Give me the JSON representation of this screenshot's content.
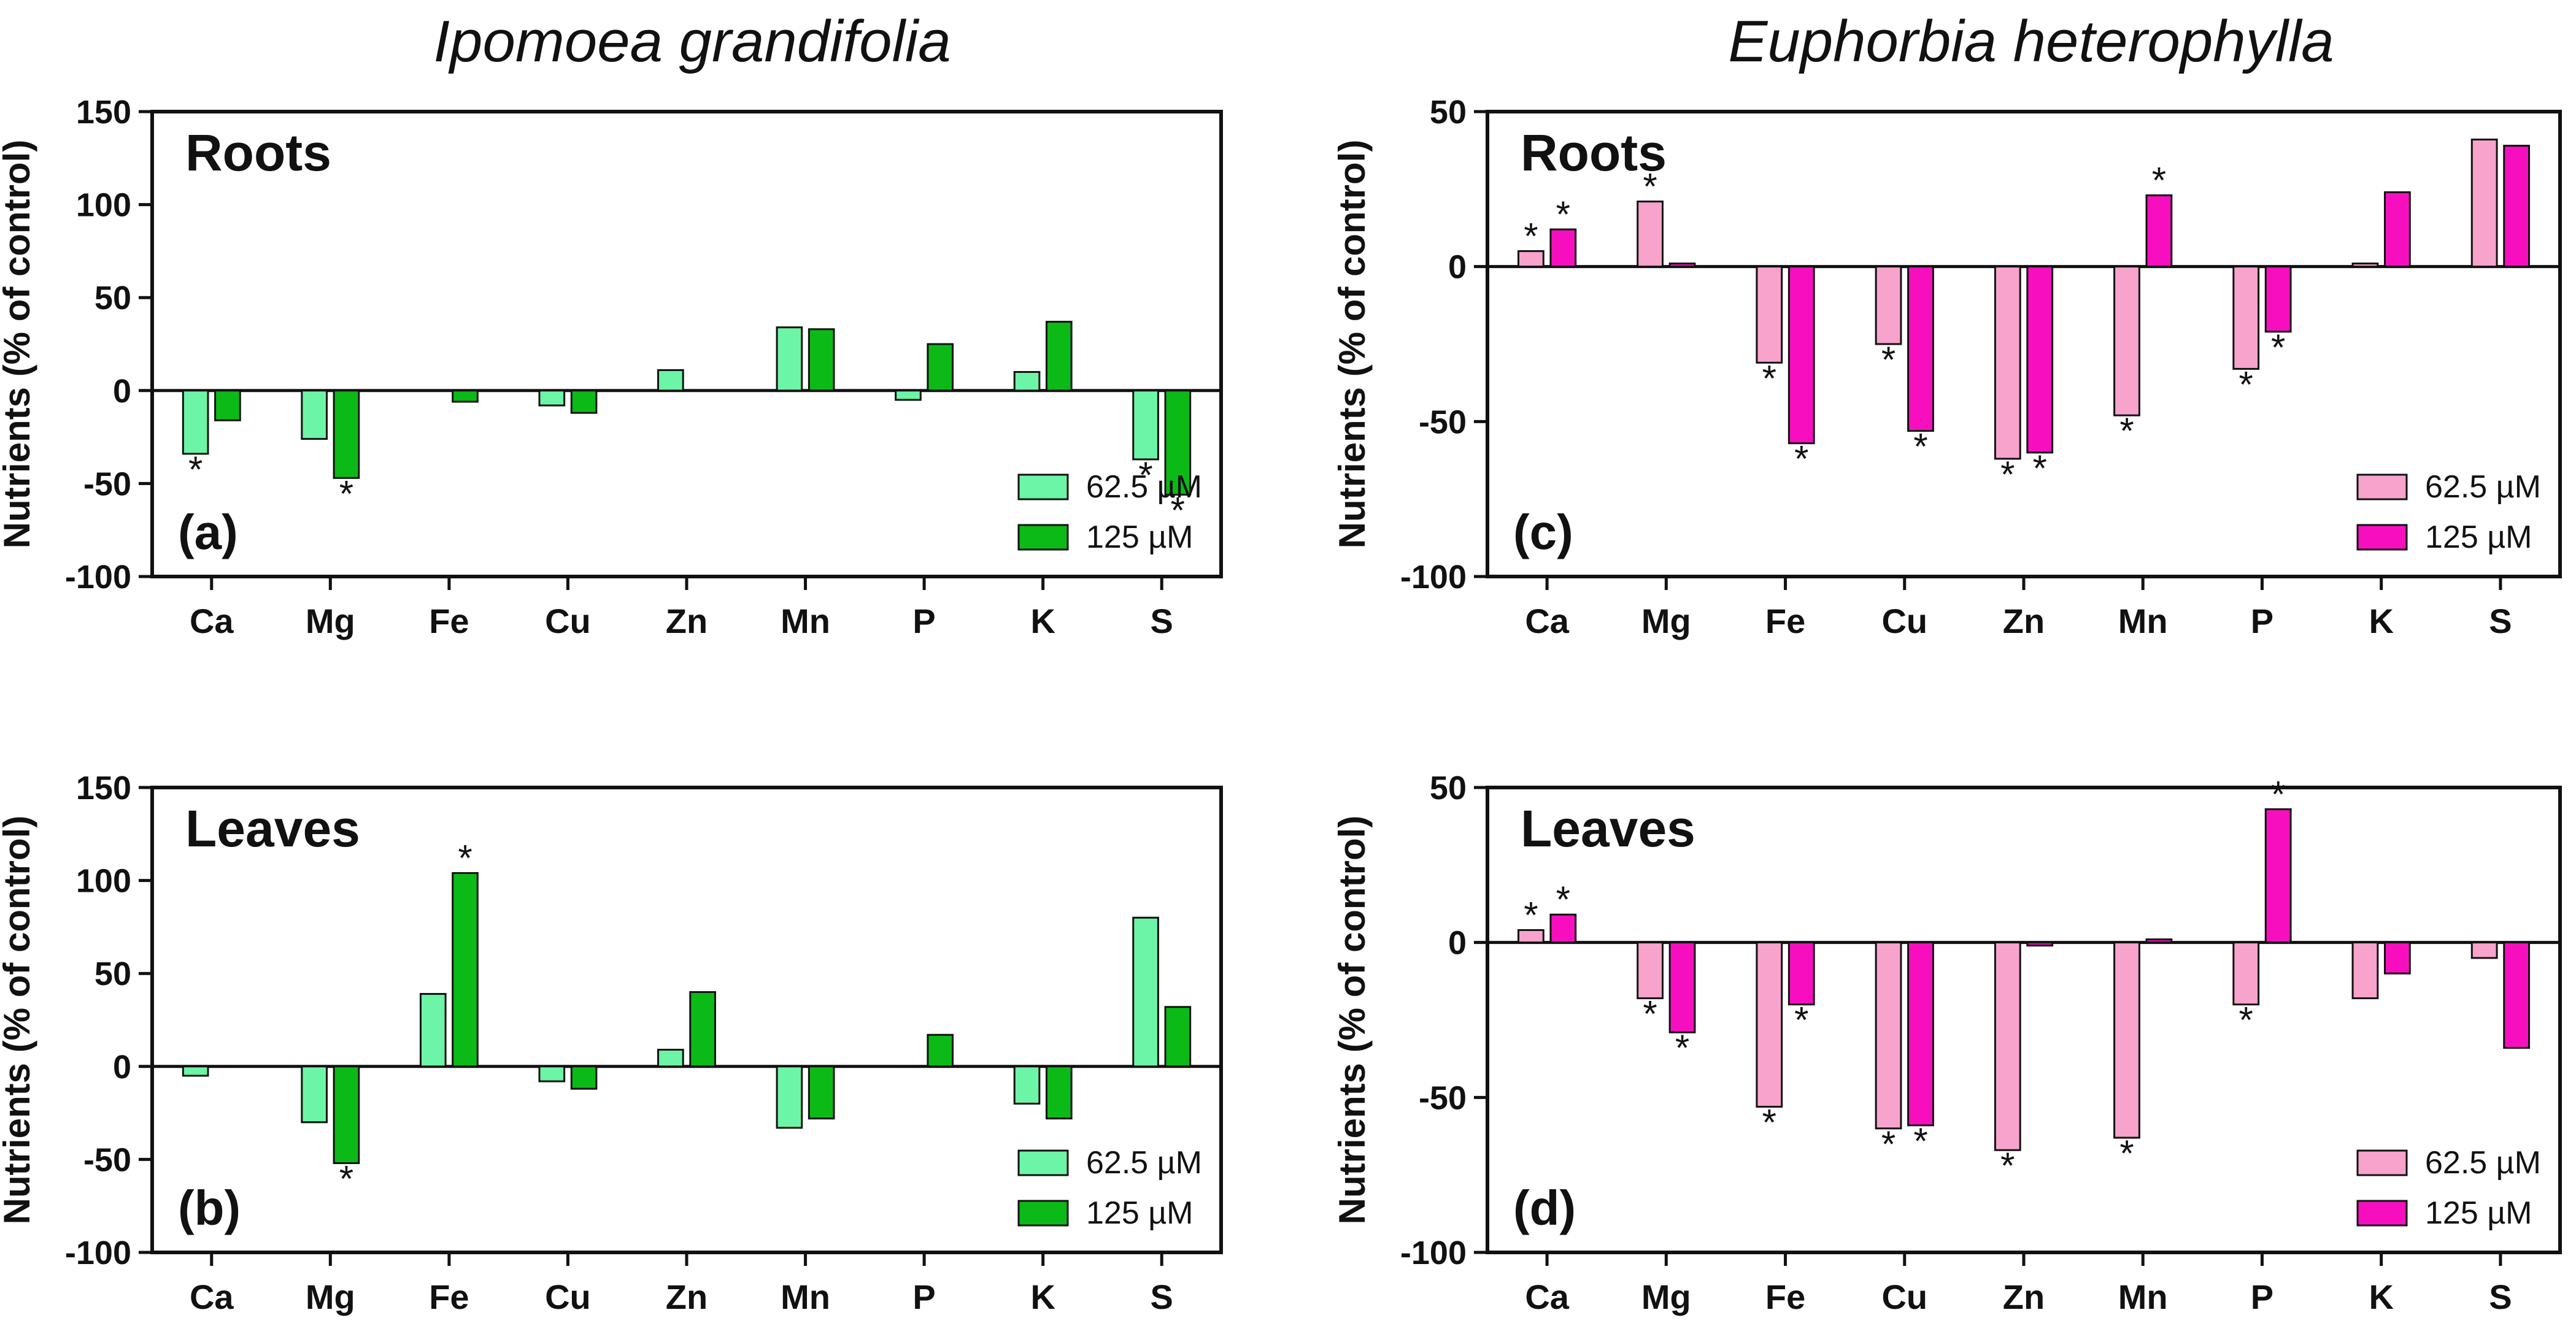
{
  "chart_data": [
    {
      "id": "a",
      "type": "bar",
      "species": "Ipomoea grandifolia",
      "panel_title": "Roots",
      "panel_label": "(a)",
      "ylabel": "Nutrients (% of control)",
      "ylim": [
        -100,
        150
      ],
      "yticks": [
        -100,
        -50,
        0,
        50,
        100,
        150
      ],
      "categories": [
        "Ca",
        "Mg",
        "Fe",
        "Cu",
        "Zn",
        "Mn",
        "P",
        "K",
        "S"
      ],
      "series": [
        {
          "name": "62.5 µM",
          "color": "#6CF5A6",
          "values": [
            -34,
            -26,
            0,
            -8,
            11,
            34,
            -5,
            10,
            -37
          ],
          "significant": [
            true,
            false,
            false,
            false,
            false,
            false,
            false,
            false,
            true
          ]
        },
        {
          "name": "125 µM",
          "color": "#0BBA17",
          "values": [
            -16,
            -47,
            -6,
            -12,
            0,
            33,
            25,
            37,
            -56
          ],
          "significant": [
            false,
            true,
            false,
            false,
            false,
            false,
            false,
            false,
            true
          ]
        }
      ],
      "legend_position": "bottom-right"
    },
    {
      "id": "b",
      "type": "bar",
      "species": "Ipomoea grandifolia",
      "panel_title": "Leaves",
      "panel_label": "(b)",
      "ylabel": "Nutrients (% of control)",
      "ylim": [
        -100,
        150
      ],
      "yticks": [
        -100,
        -50,
        0,
        50,
        100,
        150
      ],
      "categories": [
        "Ca",
        "Mg",
        "Fe",
        "Cu",
        "Zn",
        "Mn",
        "P",
        "K",
        "S"
      ],
      "series": [
        {
          "name": "62.5 µM",
          "color": "#6CF5A6",
          "values": [
            -5,
            -30,
            39,
            -8,
            9,
            -33,
            0,
            -20,
            80
          ],
          "significant": [
            false,
            false,
            false,
            false,
            false,
            false,
            false,
            false,
            false
          ]
        },
        {
          "name": "125 µM",
          "color": "#0BBA17",
          "values": [
            0,
            -52,
            104,
            -12,
            40,
            -28,
            17,
            -28,
            32
          ],
          "significant": [
            false,
            true,
            true,
            false,
            false,
            false,
            false,
            false,
            false
          ]
        }
      ],
      "legend_position": "bottom-right"
    },
    {
      "id": "c",
      "type": "bar",
      "species": "Euphorbia heterophylla",
      "panel_title": "Roots",
      "panel_label": "(c)",
      "ylabel": "Nutrients (% of control)",
      "ylim": [
        -100,
        50
      ],
      "yticks": [
        -100,
        -50,
        0,
        50
      ],
      "categories": [
        "Ca",
        "Mg",
        "Fe",
        "Cu",
        "Zn",
        "Mn",
        "P",
        "K",
        "S"
      ],
      "series": [
        {
          "name": "62.5 µM",
          "color": "#F7A3CB",
          "values": [
            5,
            21,
            -31,
            -25,
            -62,
            -48,
            -33,
            1,
            41
          ],
          "significant": [
            true,
            true,
            true,
            true,
            true,
            true,
            true,
            false,
            false
          ]
        },
        {
          "name": "125 µM",
          "color": "#F70FBF",
          "values": [
            12,
            1,
            -57,
            -53,
            -60,
            23,
            -21,
            24,
            39
          ],
          "significant": [
            true,
            false,
            true,
            true,
            true,
            true,
            true,
            false,
            false
          ]
        }
      ],
      "legend_position": "bottom-right"
    },
    {
      "id": "d",
      "type": "bar",
      "species": "Euphorbia heterophylla",
      "panel_title": "Leaves",
      "panel_label": "(d)",
      "ylabel": "Nutrients (% of control)",
      "ylim": [
        -100,
        50
      ],
      "yticks": [
        -100,
        -50,
        0,
        50
      ],
      "categories": [
        "Ca",
        "Mg",
        "Fe",
        "Cu",
        "Zn",
        "Mn",
        "P",
        "K",
        "S"
      ],
      "series": [
        {
          "name": "62.5 µM",
          "color": "#F7A3CB",
          "values": [
            4,
            -18,
            -53,
            -60,
            -67,
            -63,
            -20,
            -18,
            -5
          ],
          "significant": [
            true,
            true,
            true,
            true,
            true,
            true,
            true,
            false,
            false
          ]
        },
        {
          "name": "125 µM",
          "color": "#F70FBF",
          "values": [
            9,
            -29,
            -20,
            -59,
            -1,
            1,
            43,
            -10,
            -34
          ],
          "significant": [
            true,
            true,
            true,
            true,
            false,
            false,
            true,
            false,
            false
          ]
        }
      ],
      "legend_position": "bottom-right"
    }
  ],
  "species_titles": [
    "Ipomoea grandifolia",
    "Euphorbia heterophylla"
  ],
  "significance_marker": "*"
}
